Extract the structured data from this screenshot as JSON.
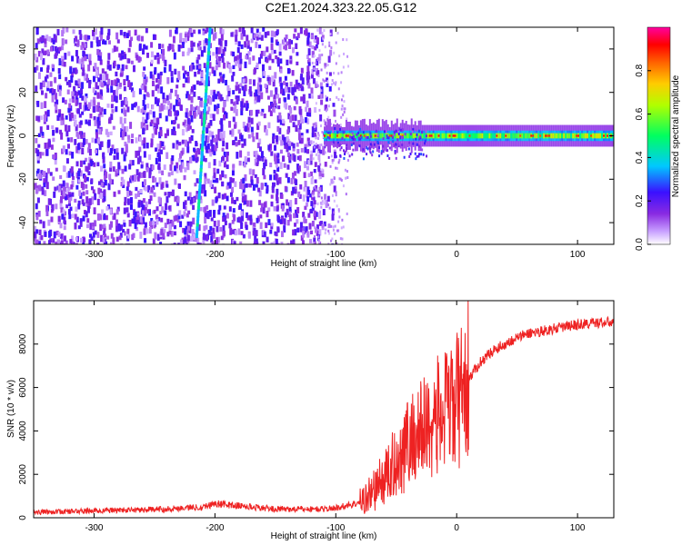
{
  "title": "C2E1.2024.323.22.05.G12",
  "chart_data": [
    {
      "type": "heatmap",
      "xlabel": "Height of straight line (km)",
      "ylabel": "Frequency (Hz)",
      "xlim": [
        -350,
        130
      ],
      "ylim": [
        -50,
        50
      ],
      "x_ticks": [
        "-300",
        "-200",
        "-100",
        "0",
        "100"
      ],
      "y_ticks": [
        "-40",
        "-20",
        "0",
        "20",
        "40"
      ],
      "colorbar_label": "Normalized spectral amplitude",
      "colorbar_range": [
        0,
        1
      ],
      "colorbar_ticks": [
        "0.0",
        "0.2",
        "0.4",
        "0.6",
        "0.8"
      ],
      "colormap_stops": [
        "#ffffff",
        "#c8a0ff",
        "#8a2be2",
        "#3a10ff",
        "#00c8ff",
        "#00ff60",
        "#ffff00",
        "#ff8000",
        "#ff0000",
        "#ff00a0"
      ],
      "traces": [
        {
          "name": "main-signal",
          "x_start": -110,
          "x_end": 130,
          "frequency": 0,
          "amplitude": [
            0.4,
            0.9
          ]
        },
        {
          "name": "diagonal-line",
          "x": [
            -204,
            -215
          ],
          "frequency": [
            50,
            -45
          ],
          "amplitude": 0.35
        }
      ]
    },
    {
      "type": "line",
      "xlabel": "Height of straight line (km)",
      "ylabel": "SNR (10 * v/v)",
      "xlim": [
        -350,
        130
      ],
      "ylim": [
        0,
        10000
      ],
      "x_ticks": [
        "-300",
        "-200",
        "-100",
        "0",
        "100"
      ],
      "y_ticks": [
        "0",
        "2000",
        "4000",
        "6000",
        "8000"
      ],
      "color": "#ee2222",
      "series": [
        {
          "x": [
            -350,
            -300,
            -250,
            -210,
            -200,
            -150,
            -110,
            -100,
            -80,
            -70,
            -60,
            -50,
            -40,
            -30,
            -20,
            -10,
            0,
            10,
            20,
            30,
            40,
            50,
            60,
            80,
            100,
            120,
            130
          ],
          "values": [
            250,
            320,
            380,
            500,
            650,
            400,
            400,
            450,
            700,
            1200,
            1800,
            2600,
            3500,
            4000,
            4500,
            4800,
            5300,
            6400,
            7200,
            7700,
            8000,
            8300,
            8500,
            8700,
            8900,
            9000,
            9000
          ]
        }
      ]
    }
  ]
}
